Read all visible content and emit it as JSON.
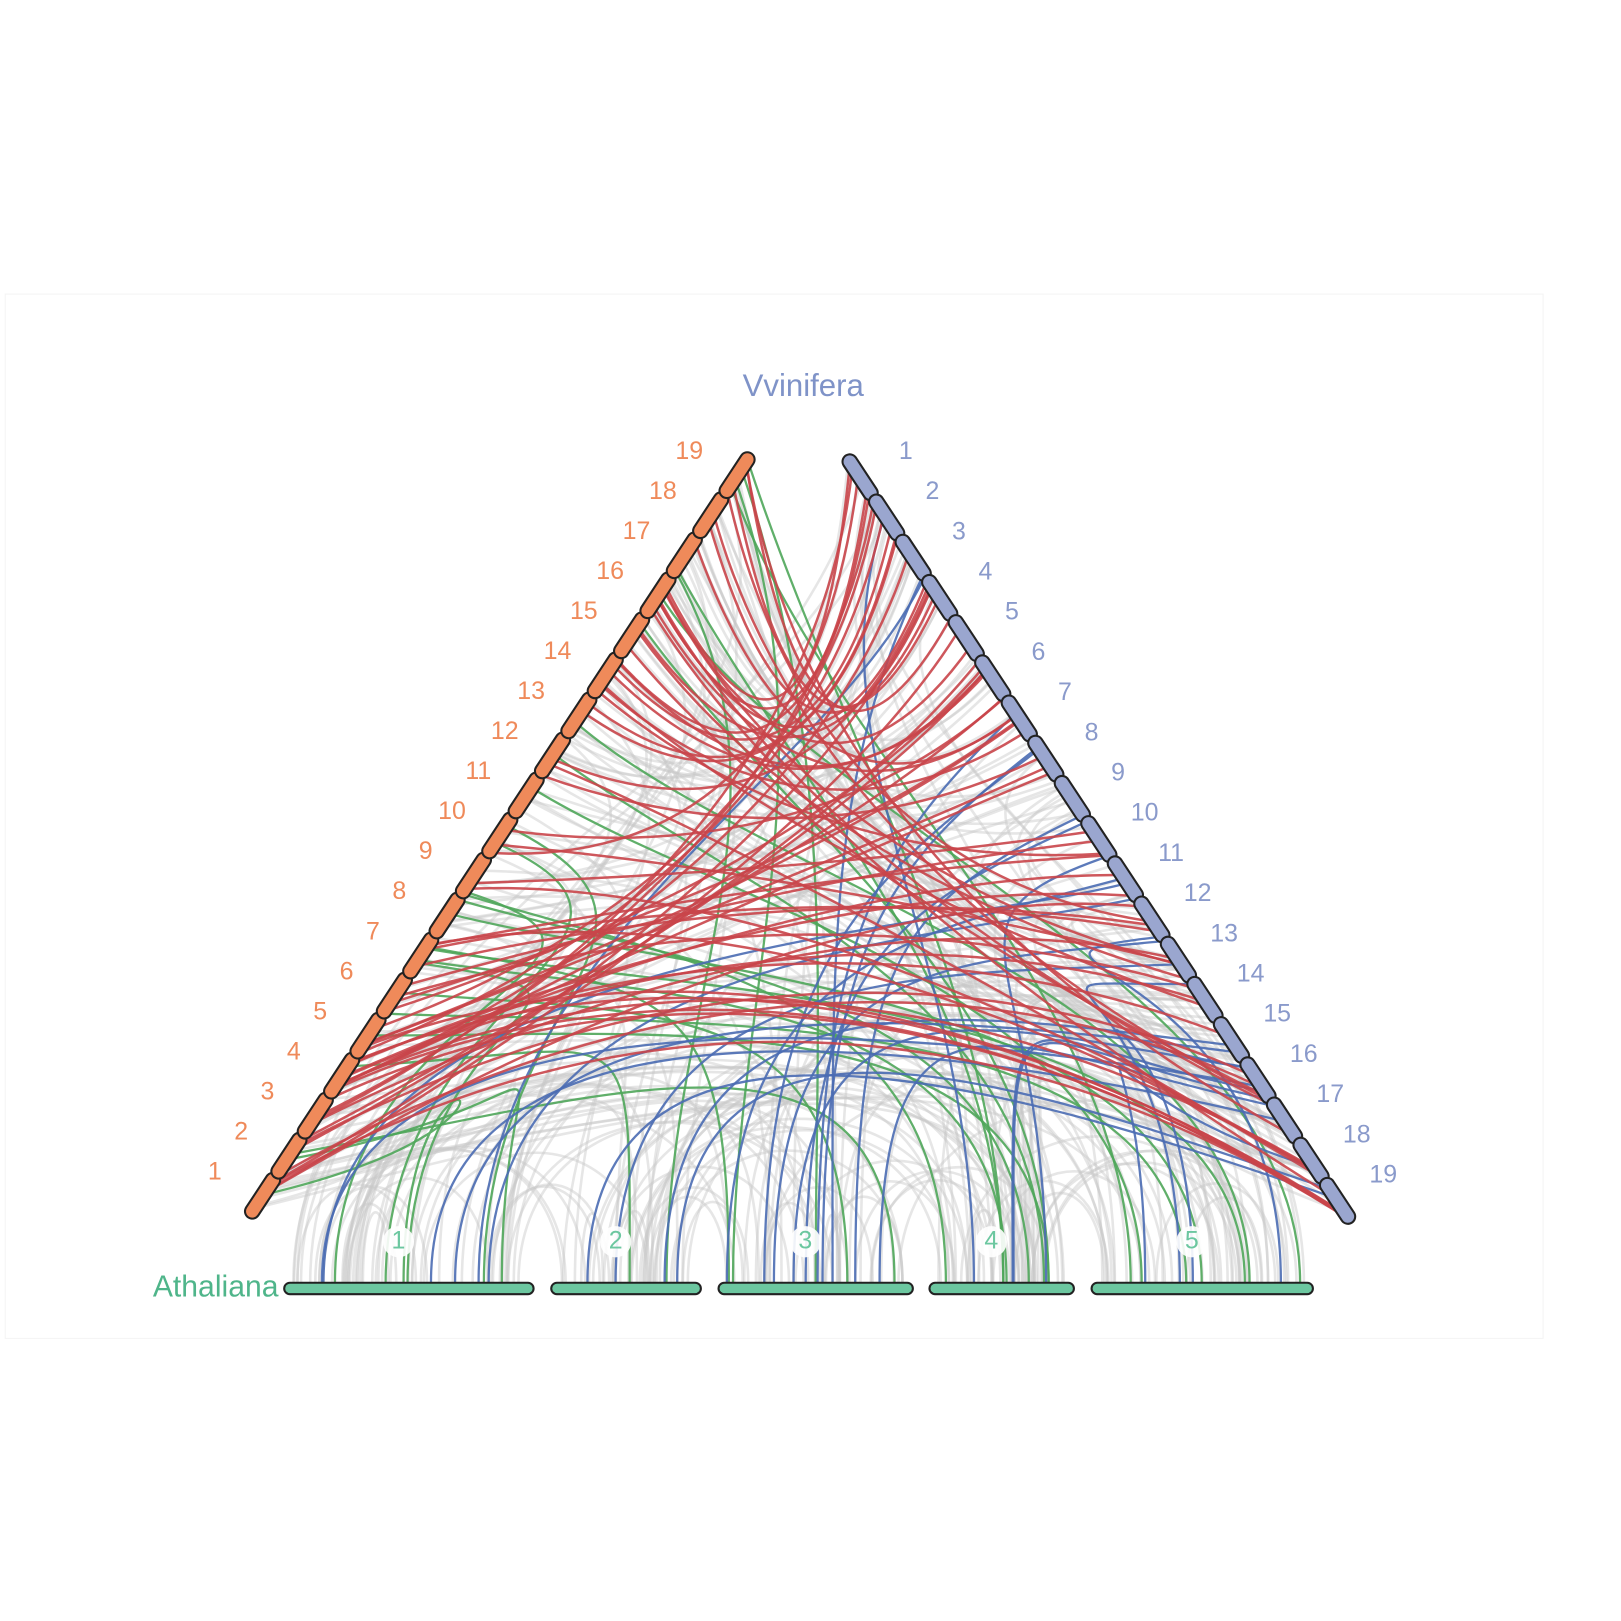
{
  "genomes": [
    {
      "name": "Vvinifera",
      "chromosomes": [
        "1",
        "2",
        "3",
        "4",
        "5",
        "6",
        "7",
        "8",
        "9",
        "10",
        "11",
        "12",
        "13",
        "14",
        "15",
        "16",
        "17",
        "18",
        "19"
      ]
    },
    {
      "chromosomes": [
        "1",
        "2",
        "3",
        "4",
        "5",
        "6",
        "7",
        "8",
        "9",
        "10",
        "11",
        "12",
        "13",
        "14",
        "15",
        "16",
        "17",
        "18",
        "19"
      ]
    },
    {
      "name": "Athaliana",
      "chromosomes": [
        "1",
        "2",
        "3",
        "4",
        "5"
      ]
    }
  ]
}
